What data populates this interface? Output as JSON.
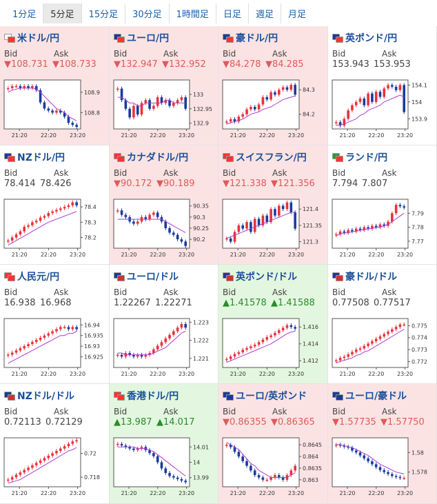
{
  "tabs": [
    "1分足",
    "5分足",
    "15分足",
    "30分足",
    "1時間足",
    "日足",
    "週足",
    "月足"
  ],
  "active_tab": "5分足",
  "labels": {
    "bid": "Bid",
    "ask": "Ask"
  },
  "x_ticks": [
    "21:20",
    "22:20",
    "23:20"
  ],
  "colors": {
    "down_bg": "#fce3e3",
    "up_bg": "#e3f6df",
    "flat_bg": "#ffffff",
    "up_candle": "#e8323c",
    "down_candle": "#1a3aa0",
    "ma": "#b03bd0"
  },
  "pairs": [
    {
      "name": "米ドル/円",
      "trend": "down",
      "flags": [
        "#ffffff",
        "#ff3333"
      ],
      "bid": "▼108.731",
      "ask": "▼108.733",
      "yticks": [
        "108.9",
        "108.8"
      ],
      "ylim": [
        108.72,
        108.96
      ],
      "price": [
        108.92,
        108.93,
        108.93,
        108.92,
        108.93,
        108.92,
        108.93,
        108.91,
        108.85,
        108.82,
        108.81,
        108.8,
        108.81,
        108.8,
        108.78,
        108.75,
        108.74,
        108.73
      ],
      "ma": [
        108.9,
        108.91,
        108.915,
        108.92,
        108.92,
        108.92,
        108.92,
        108.915,
        108.9,
        108.88,
        108.86,
        108.84,
        108.82,
        108.81,
        108.8,
        108.78,
        108.77,
        108.76
      ]
    },
    {
      "name": "ユーロ/円",
      "trend": "down",
      "flags": [
        "#1a3a9a",
        "#ff3333"
      ],
      "bid": "▼132.947",
      "ask": "▼132.952",
      "yticks": [
        "133",
        "132.95",
        "132.9"
      ],
      "ylim": [
        132.88,
        133.05
      ],
      "price": [
        133.02,
        132.98,
        132.95,
        132.92,
        132.96,
        132.93,
        132.97,
        132.98,
        132.95,
        132.96,
        132.99,
        132.97,
        132.98,
        132.96,
        132.97,
        132.98,
        132.99,
        132.95
      ],
      "ma": [
        132.99,
        132.99,
        132.98,
        132.97,
        132.97,
        132.96,
        132.96,
        132.97,
        132.97,
        132.97,
        132.97,
        132.97,
        132.98,
        132.98,
        132.97,
        132.97,
        132.97,
        132.97
      ]
    },
    {
      "name": "豪ドル/円",
      "trend": "down",
      "flags": [
        "#1a3a9a",
        "#ff3333"
      ],
      "bid": "▼84.278",
      "ask": "▼84.285",
      "yticks": [
        "84.3",
        "84.2"
      ],
      "ylim": [
        84.14,
        84.34
      ],
      "price": [
        84.17,
        84.18,
        84.17,
        84.19,
        84.2,
        84.22,
        84.23,
        84.22,
        84.24,
        84.27,
        84.26,
        84.29,
        84.28,
        84.3,
        84.31,
        84.3,
        84.32,
        84.28
      ],
      "ma": [
        84.16,
        84.165,
        84.17,
        84.175,
        84.18,
        84.19,
        84.2,
        84.205,
        84.21,
        84.22,
        84.225,
        84.23,
        84.24,
        84.25,
        84.26,
        84.265,
        84.27,
        84.275
      ]
    },
    {
      "name": "英ポンド/円",
      "trend": "flat",
      "flags": [
        "#1a3a9a",
        "#ff3333"
      ],
      "bid": "153.943",
      "ask": "153.953",
      "yticks": [
        "154.1",
        "154",
        "153.9"
      ],
      "ylim": [
        153.84,
        154.13
      ],
      "price": [
        153.88,
        153.86,
        153.9,
        153.95,
        153.98,
        154.0,
        154.02,
        153.98,
        154.05,
        154.0,
        154.06,
        154.03,
        154.08,
        154.1,
        154.09,
        154.07,
        154.1,
        153.94
      ],
      "ma": [
        153.86,
        153.865,
        153.87,
        153.88,
        153.89,
        153.9,
        153.92,
        153.93,
        153.95,
        153.96,
        153.97,
        153.98,
        154.0,
        154.01,
        154.02,
        154.03,
        154.04,
        154.03
      ]
    },
    {
      "name": "NZドル/円",
      "trend": "flat",
      "flags": [
        "#1a3a9a",
        "#ff3333"
      ],
      "bid": "78.414",
      "ask": "78.426",
      "yticks": [
        "78.4",
        "78.3",
        "78.2"
      ],
      "ylim": [
        78.13,
        78.45
      ],
      "price": [
        78.18,
        78.2,
        78.22,
        78.24,
        78.27,
        78.28,
        78.3,
        78.31,
        78.33,
        78.34,
        78.36,
        78.37,
        78.38,
        78.39,
        78.4,
        78.41,
        78.43,
        78.41
      ],
      "ma": [
        78.15,
        78.165,
        78.18,
        78.195,
        78.21,
        78.225,
        78.24,
        78.255,
        78.27,
        78.285,
        78.3,
        78.31,
        78.32,
        78.33,
        78.34,
        78.35,
        78.36,
        78.37
      ]
    },
    {
      "name": "カナダドル/円",
      "trend": "down",
      "flags": [
        "#ff3333",
        "#ff3333"
      ],
      "bid": "▼90.172",
      "ask": "▼90.189",
      "yticks": [
        "90.35",
        "90.3",
        "90.25",
        "90.2"
      ],
      "ylim": [
        90.16,
        90.38
      ],
      "price": [
        90.33,
        90.31,
        90.3,
        90.28,
        90.27,
        90.28,
        90.3,
        90.29,
        90.31,
        90.32,
        90.3,
        90.28,
        90.25,
        90.23,
        90.22,
        90.2,
        90.19,
        90.17
      ],
      "ma": [
        90.29,
        90.29,
        90.29,
        90.29,
        90.29,
        90.29,
        90.29,
        90.29,
        90.29,
        90.29,
        90.29,
        90.29,
        90.28,
        90.27,
        90.26,
        90.25,
        90.24,
        90.23
      ]
    },
    {
      "name": "スイスフラン/円",
      "trend": "down",
      "flags": [
        "#ff3333",
        "#ff3333"
      ],
      "bid": "▼121.338",
      "ask": "▼121.356",
      "yticks": [
        "121.4",
        "121.35",
        "121.3"
      ],
      "ylim": [
        121.28,
        121.43
      ],
      "price": [
        121.31,
        121.3,
        121.33,
        121.35,
        121.34,
        121.36,
        121.33,
        121.37,
        121.35,
        121.38,
        121.36,
        121.4,
        121.38,
        121.41,
        121.4,
        121.42,
        121.39,
        121.34
      ],
      "ma": [
        121.31,
        121.315,
        121.32,
        121.325,
        121.33,
        121.335,
        121.34,
        121.345,
        121.35,
        121.355,
        121.36,
        121.365,
        121.37,
        121.375,
        121.38,
        121.385,
        121.39,
        121.39
      ]
    },
    {
      "name": "ランド/円",
      "trend": "flat",
      "flags": [
        "#2a9a3a",
        "#ff3333"
      ],
      "bid": "7.794",
      "ask": "7.807",
      "yticks": [
        "7.79",
        "7.78",
        "7.77"
      ],
      "ylim": [
        7.765,
        7.8
      ],
      "price": [
        7.775,
        7.777,
        7.776,
        7.778,
        7.777,
        7.779,
        7.778,
        7.78,
        7.779,
        7.781,
        7.78,
        7.782,
        7.781,
        7.784,
        7.79,
        7.796,
        7.795,
        7.794
      ],
      "ma": [
        7.774,
        7.775,
        7.776,
        7.776,
        7.777,
        7.777,
        7.778,
        7.778,
        7.779,
        7.779,
        7.78,
        7.78,
        7.781,
        7.782,
        7.784,
        7.786,
        7.788,
        7.79
      ]
    },
    {
      "name": "人民元/円",
      "trend": "flat",
      "flags": [
        "#ff3333",
        "#ff3333"
      ],
      "bid": "16.938",
      "ask": "16.968",
      "yticks": [
        "16.94",
        "16.935",
        "16.93",
        "16.925"
      ],
      "ylim": [
        16.92,
        16.943
      ],
      "price": [
        16.926,
        16.927,
        16.928,
        16.929,
        16.93,
        16.931,
        16.932,
        16.933,
        16.934,
        16.935,
        16.936,
        16.937,
        16.938,
        16.939,
        16.939,
        16.938,
        16.939,
        16.938
      ],
      "ma": [
        16.922,
        16.923,
        16.924,
        16.925,
        16.926,
        16.927,
        16.928,
        16.929,
        16.93,
        16.931,
        16.932,
        16.933,
        16.934,
        16.935,
        16.935,
        16.936,
        16.936,
        16.937
      ]
    },
    {
      "name": "ユーロ/ドル",
      "trend": "flat",
      "flags": [
        "#1a3a9a",
        "#cc3333"
      ],
      "bid": "1.22267",
      "ask": "1.22271",
      "yticks": [
        "1.223",
        "1.222",
        "1.221"
      ],
      "ylim": [
        1.2205,
        1.2232
      ],
      "price": [
        1.2212,
        1.2211,
        1.2213,
        1.2212,
        1.2211,
        1.2212,
        1.2211,
        1.2212,
        1.2213,
        1.2215,
        1.2217,
        1.2219,
        1.2221,
        1.2223,
        1.2225,
        1.2227,
        1.2229,
        1.2227
      ],
      "ma": [
        1.2213,
        1.2213,
        1.2212,
        1.2212,
        1.2212,
        1.2212,
        1.2212,
        1.2212,
        1.2212,
        1.2213,
        1.2214,
        1.2215,
        1.2216,
        1.2218,
        1.222,
        1.2222,
        1.2224,
        1.2225
      ]
    },
    {
      "name": "英ポンド/ドル",
      "trend": "up",
      "flags": [
        "#1a3a9a",
        "#cc3333"
      ],
      "bid": "▲1.41578",
      "ask": "▲1.41588",
      "yticks": [
        "1.416",
        "1.414",
        "1.412"
      ],
      "ylim": [
        1.4112,
        1.417
      ],
      "price": [
        1.4122,
        1.4125,
        1.4128,
        1.413,
        1.4133,
        1.4135,
        1.4137,
        1.4139,
        1.4142,
        1.4145,
        1.4148,
        1.415,
        1.4153,
        1.4156,
        1.4159,
        1.4162,
        1.416,
        1.4158
      ],
      "ma": [
        1.4118,
        1.412,
        1.4122,
        1.4124,
        1.4126,
        1.4128,
        1.413,
        1.4132,
        1.4134,
        1.4136,
        1.4138,
        1.414,
        1.4143,
        1.4146,
        1.4149,
        1.4152,
        1.4154,
        1.4155
      ]
    },
    {
      "name": "豪ドル/ドル",
      "trend": "flat",
      "flags": [
        "#1a3a9a",
        "#cc3333"
      ],
      "bid": "0.77508",
      "ask": "0.77517",
      "yticks": [
        "0.775",
        "0.774",
        "0.773",
        "0.772"
      ],
      "ylim": [
        0.7715,
        0.7756
      ],
      "price": [
        0.7721,
        0.7723,
        0.7724,
        0.7726,
        0.7728,
        0.773,
        0.7731,
        0.7733,
        0.7735,
        0.7737,
        0.7739,
        0.7741,
        0.7743,
        0.7745,
        0.7747,
        0.7749,
        0.7751,
        0.7751
      ],
      "ma": [
        0.7719,
        0.772,
        0.7721,
        0.7722,
        0.7723,
        0.7725,
        0.7726,
        0.7728,
        0.7729,
        0.7731,
        0.7733,
        0.7735,
        0.7737,
        0.7739,
        0.7741,
        0.7743,
        0.7745,
        0.7747
      ]
    },
    {
      "name": "NZドル/ドル",
      "trend": "flat",
      "flags": [
        "#1a3a9a",
        "#cc3333"
      ],
      "bid": "0.72113",
      "ask": "0.72129",
      "yticks": [
        "0.72",
        "0.718"
      ],
      "ylim": [
        0.7172,
        0.7213
      ],
      "price": [
        0.7178,
        0.718,
        0.7182,
        0.7184,
        0.7186,
        0.7188,
        0.719,
        0.7192,
        0.7194,
        0.7196,
        0.7198,
        0.72,
        0.7202,
        0.7204,
        0.7206,
        0.7208,
        0.721,
        0.7211
      ],
      "ma": [
        0.7175,
        0.7176,
        0.7177,
        0.7178,
        0.718,
        0.7182,
        0.7184,
        0.7186,
        0.7188,
        0.719,
        0.7192,
        0.7194,
        0.7196,
        0.7198,
        0.72,
        0.7202,
        0.7203,
        0.7205
      ]
    },
    {
      "name": "香港ドル/円",
      "trend": "up",
      "flags": [
        "#ff3333",
        "#ff3333"
      ],
      "bid": "▲13.987",
      "ask": "▲14.017",
      "yticks": [
        "14.01",
        "14",
        "13.99"
      ],
      "ylim": [
        13.984,
        14.016
      ],
      "price": [
        14.012,
        14.011,
        14.01,
        14.009,
        14.008,
        14.009,
        14.01,
        14.008,
        14.006,
        14.004,
        14.0,
        13.996,
        13.993,
        13.991,
        13.99,
        13.989,
        13.988,
        13.987
      ],
      "ma": [
        14.01,
        14.01,
        14.01,
        14.01,
        14.01,
        14.009,
        14.009,
        14.009,
        14.008,
        14.007,
        14.005,
        14.003,
        14.001,
        13.999,
        13.997,
        13.995,
        13.993,
        13.991
      ]
    },
    {
      "name": "ユーロ/英ポンド",
      "trend": "down",
      "flags": [
        "#1a3a9a",
        "#1a3a9a"
      ],
      "bid": "▼0.86355",
      "ask": "▼0.86365",
      "yticks": [
        "0.8645",
        "0.864",
        "0.8635",
        "0.863"
      ],
      "ylim": [
        0.8627,
        0.8648
      ],
      "price": [
        0.8645,
        0.8644,
        0.8642,
        0.864,
        0.8638,
        0.8636,
        0.8634,
        0.8632,
        0.8631,
        0.863,
        0.863,
        0.8631,
        0.8632,
        0.8631,
        0.863,
        0.8632,
        0.8634,
        0.8636
      ],
      "ma": [
        0.8646,
        0.8645,
        0.8644,
        0.8643,
        0.8641,
        0.8639,
        0.8637,
        0.8636,
        0.8634,
        0.8633,
        0.8632,
        0.8631,
        0.8631,
        0.8631,
        0.8631,
        0.8631,
        0.8632,
        0.8633
      ]
    },
    {
      "name": "ユーロ/豪ドル",
      "trend": "down",
      "flags": [
        "#1a3a9a",
        "#1a3a9a"
      ],
      "bid": "▼1.57735",
      "ask": "▼1.57750",
      "yticks": [
        "1.58",
        "1.578"
      ],
      "ylim": [
        1.5765,
        1.5815
      ],
      "price": [
        1.5808,
        1.5807,
        1.5806,
        1.5805,
        1.5802,
        1.58,
        1.5797,
        1.5794,
        1.5791,
        1.5788,
        1.5785,
        1.5782,
        1.578,
        1.5778,
        1.5776,
        1.5775,
        1.5774,
        1.5774
      ],
      "ma": [
        1.5808,
        1.5808,
        1.5807,
        1.5806,
        1.5805,
        1.5803,
        1.5801,
        1.5799,
        1.5797,
        1.5794,
        1.5791,
        1.5788,
        1.5786,
        1.5784,
        1.5782,
        1.578,
        1.5779,
        1.5778
      ]
    }
  ]
}
